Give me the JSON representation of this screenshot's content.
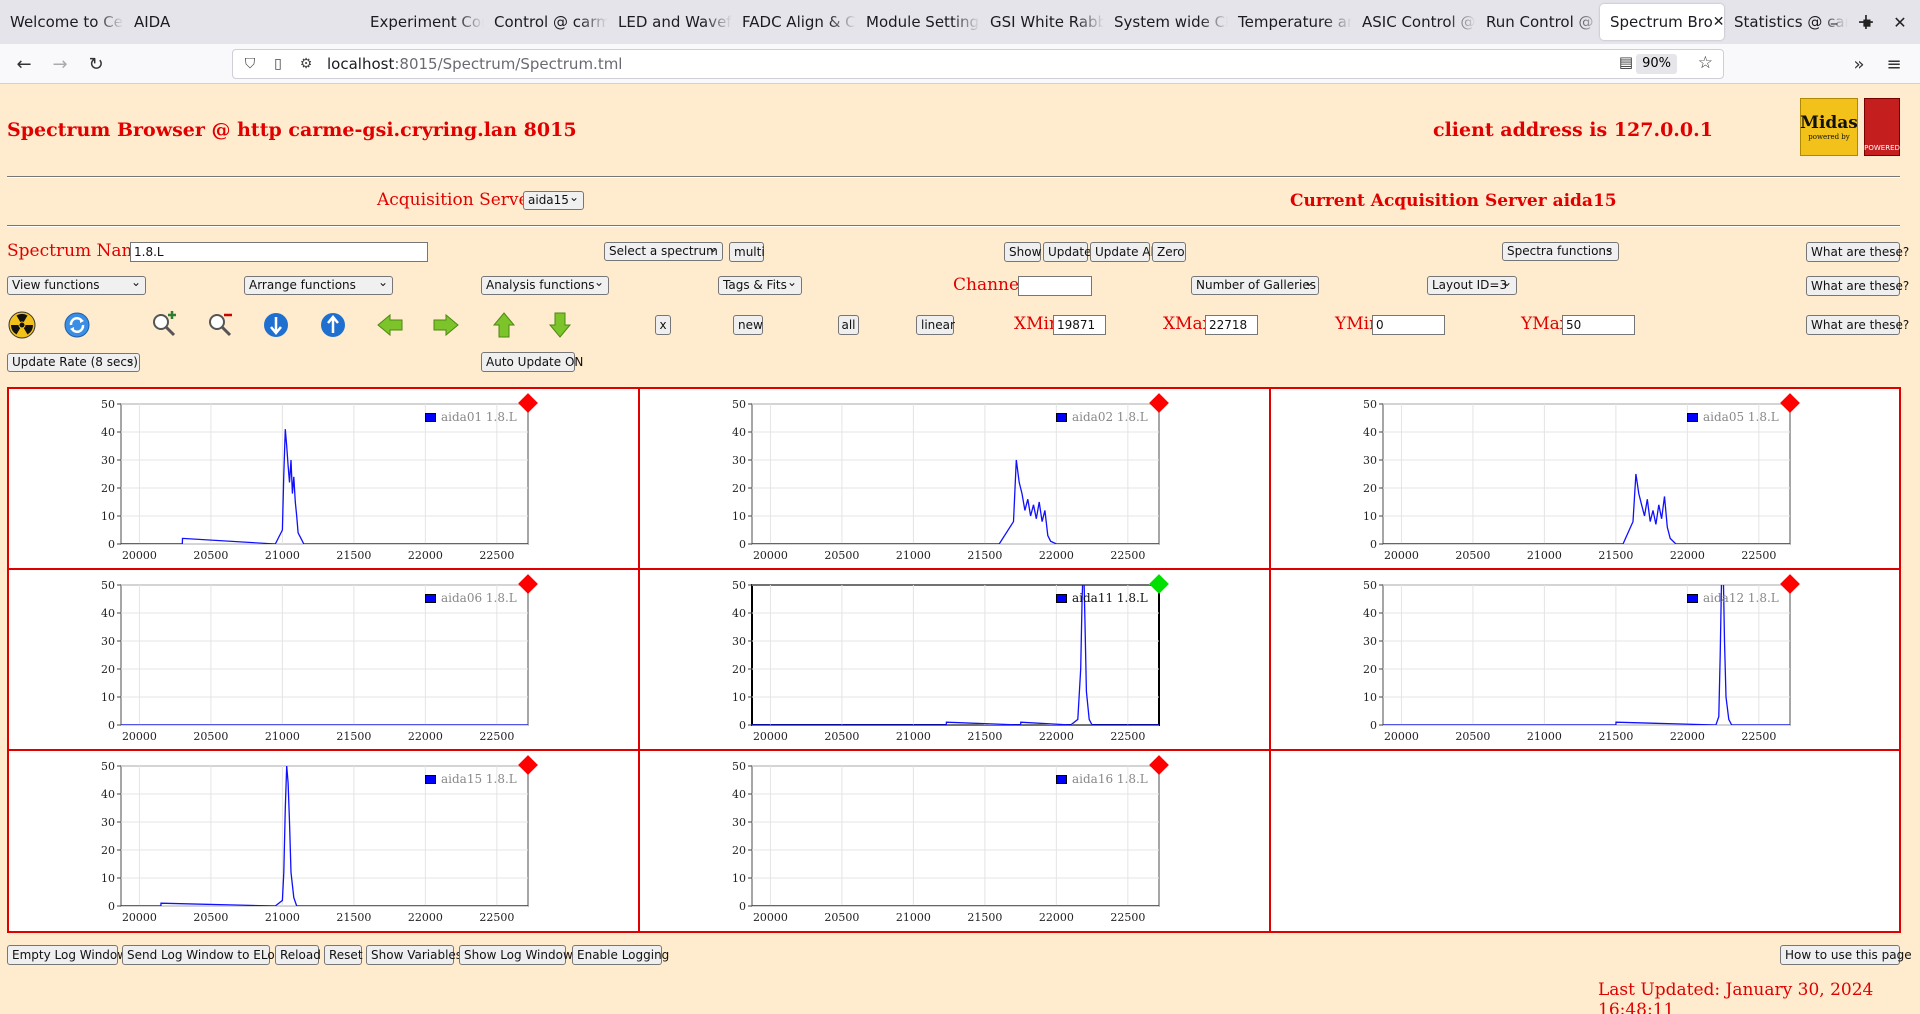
{
  "browser": {
    "tabs": [
      {
        "label": "Welcome to Ce"
      },
      {
        "label": "AIDA"
      },
      {
        "label": "Experiment Con"
      },
      {
        "label": "Control @ carm"
      },
      {
        "label": "LED and Wavef"
      },
      {
        "label": "FADC Align & C"
      },
      {
        "label": "Module Setting"
      },
      {
        "label": "GSI White Rabb"
      },
      {
        "label": "System wide Ch"
      },
      {
        "label": "Temperature an"
      },
      {
        "label": "ASIC Control @"
      },
      {
        "label": "Run Control @"
      },
      {
        "label": "Spectrum Bro"
      },
      {
        "label": "Statistics @ car"
      }
    ],
    "active_tab": 12,
    "url_host": "localhost",
    "url_path": ":8015/Spectrum/Spectrum.tml",
    "zoom": "90%"
  },
  "header": {
    "title": "Spectrum Browser @ http carme-gsi.cryring.lan 8015",
    "client_address": "client address is 127.0.0.1",
    "logo_midas": "Midas",
    "logo_midas_sub": "powered by",
    "logo_tcl": "POWERED"
  },
  "servers": {
    "label": "Acquisition Servers",
    "selected": "aida15",
    "current": "Current Acquisition Server aida15"
  },
  "controls": {
    "spectrum_name_label": "Spectrum Name:",
    "spectrum_name_value": "1.8.L",
    "select_spectrum": "Select a spectrum",
    "multi": "multi",
    "show": "Show",
    "update": "Update",
    "update_all": "Update All",
    "zero": "Zero",
    "spectra_functions": "Spectra functions",
    "what_are_these": "What are these?",
    "view_functions": "View functions",
    "arrange_functions": "Arrange functions",
    "analysis_functions": "Analysis functions",
    "tags_fits": "Tags & Fits",
    "channel_label": "Channel:",
    "channel_value": "",
    "number_of_galleries": "Number of Galleries",
    "layout_id": "Layout ID=3",
    "btn_x": "x",
    "btn_new": "new",
    "btn_all": "all",
    "btn_linear": "linear",
    "xmin_label": "XMin",
    "xmin_value": "19871",
    "xmax_label": "XMax",
    "xmax_value": "22718",
    "ymin_label": "YMin",
    "ymin_value": "0",
    "ymax_label": "YMax",
    "ymax_value": "50",
    "update_rate": "Update Rate (8 secs)",
    "auto_update": "Auto Update ON"
  },
  "icons": {
    "colors": {
      "radiation": "#f2c21b",
      "zoom": "#2e7d32",
      "arrow_green": "#7cc42a",
      "blue_ball": "#1e6fd0"
    }
  },
  "footer": {
    "empty_log": "Empty Log Window",
    "send_log": "Send Log Window to ELog",
    "reload": "Reload",
    "reset": "Reset",
    "show_variables": "Show Variables",
    "show_log": "Show Log Window",
    "enable_logging": "Enable Logging",
    "how_to_use": "How to use this page",
    "last_updated": "Last Updated: January 30, 2024 16:48:11"
  },
  "chart_data": [
    {
      "type": "line",
      "legend": "aida01 1.8.L",
      "status_color": "#ff0000",
      "active": false,
      "x": [
        19871,
        20300,
        20301,
        20950,
        21000,
        21010,
        21020,
        21030,
        21040,
        21050,
        21060,
        21070,
        21080,
        21090,
        21100,
        21110,
        21130,
        21150,
        22718
      ],
      "y": [
        0,
        0,
        2,
        0,
        5,
        25,
        41,
        35,
        28,
        22,
        30,
        18,
        24,
        15,
        10,
        4,
        2,
        0,
        0
      ],
      "xlim": [
        19871,
        22718
      ],
      "ylim": [
        0,
        50
      ],
      "xticks": [
        20000,
        20500,
        21000,
        21500,
        22000,
        22500
      ],
      "yticks": [
        0,
        10,
        20,
        30,
        40,
        50
      ]
    },
    {
      "type": "line",
      "legend": "aida02 1.8.L",
      "status_color": "#ff0000",
      "active": false,
      "x": [
        19871,
        21600,
        21700,
        21720,
        21740,
        21760,
        21780,
        21800,
        21820,
        21840,
        21860,
        21880,
        21900,
        21920,
        21940,
        21960,
        22000,
        22718
      ],
      "y": [
        0,
        0,
        8,
        30,
        22,
        18,
        12,
        16,
        10,
        14,
        9,
        15,
        8,
        12,
        3,
        1,
        0,
        0
      ],
      "xlim": [
        19871,
        22718
      ],
      "ylim": [
        0,
        50
      ],
      "xticks": [
        20000,
        20500,
        21000,
        21500,
        22000,
        22500
      ],
      "yticks": [
        0,
        10,
        20,
        30,
        40,
        50
      ]
    },
    {
      "type": "line",
      "legend": "aida05 1.8.L",
      "status_color": "#ff0000",
      "active": false,
      "x": [
        19871,
        21550,
        21620,
        21640,
        21660,
        21680,
        21700,
        21720,
        21740,
        21760,
        21780,
        21800,
        21820,
        21840,
        21860,
        21880,
        21920,
        22718
      ],
      "y": [
        0,
        0,
        8,
        25,
        18,
        14,
        10,
        16,
        8,
        12,
        7,
        14,
        9,
        17,
        6,
        2,
        0,
        0
      ],
      "xlim": [
        19871,
        22718
      ],
      "ylim": [
        0,
        50
      ],
      "xticks": [
        20000,
        20500,
        21000,
        21500,
        22000,
        22500
      ],
      "yticks": [
        0,
        10,
        20,
        30,
        40,
        50
      ]
    },
    {
      "type": "line",
      "legend": "aida06 1.8.L",
      "status_color": "#ff0000",
      "active": false,
      "x": [
        19871,
        22718
      ],
      "y": [
        0,
        0
      ],
      "xlim": [
        19871,
        22718
      ],
      "ylim": [
        0,
        50
      ],
      "xticks": [
        20000,
        20500,
        21000,
        21500,
        22000,
        22500
      ],
      "yticks": [
        0,
        10,
        20,
        30,
        40,
        50
      ]
    },
    {
      "type": "line",
      "legend": "aida11 1.8.L",
      "status_color": "#00e000",
      "active": true,
      "x": [
        19871,
        21230,
        21231,
        21750,
        21751,
        22100,
        22150,
        22170,
        22180,
        22190,
        22200,
        22210,
        22230,
        22250,
        22718
      ],
      "y": [
        0,
        0,
        1,
        0,
        1,
        0,
        2,
        20,
        45,
        60,
        38,
        12,
        2,
        0,
        0
      ],
      "xlim": [
        19871,
        22718
      ],
      "ylim": [
        0,
        50
      ],
      "xticks": [
        20000,
        20500,
        21000,
        21500,
        22000,
        22500
      ],
      "yticks": [
        0,
        10,
        20,
        30,
        40,
        50
      ]
    },
    {
      "type": "line",
      "legend": "aida12 1.8.L",
      "status_color": "#ff0000",
      "active": false,
      "x": [
        19871,
        21500,
        21501,
        22200,
        22220,
        22230,
        22240,
        22250,
        22260,
        22270,
        22290,
        22310,
        22718
      ],
      "y": [
        0,
        0,
        1,
        0,
        3,
        25,
        55,
        58,
        30,
        10,
        2,
        0,
        0
      ],
      "xlim": [
        19871,
        22718
      ],
      "ylim": [
        0,
        50
      ],
      "xticks": [
        20000,
        20500,
        21000,
        21500,
        22000,
        22500
      ],
      "yticks": [
        0,
        10,
        20,
        30,
        40,
        50
      ]
    },
    {
      "type": "line",
      "legend": "aida15 1.8.L",
      "status_color": "#ff0000",
      "active": false,
      "x": [
        19871,
        20150,
        20151,
        20950,
        21000,
        21010,
        21020,
        21030,
        21040,
        21050,
        21060,
        21080,
        21100,
        22718
      ],
      "y": [
        0,
        0,
        1,
        0,
        2,
        12,
        35,
        50,
        44,
        30,
        12,
        3,
        0,
        0
      ],
      "xlim": [
        19871,
        22718
      ],
      "ylim": [
        0,
        50
      ],
      "xticks": [
        20000,
        20500,
        21000,
        21500,
        22000,
        22500
      ],
      "yticks": [
        0,
        10,
        20,
        30,
        40,
        50
      ]
    },
    {
      "type": "line",
      "legend": "aida16 1.8.L",
      "status_color": "#ff0000",
      "active": false,
      "x": [
        19871,
        22718
      ],
      "y": [
        0,
        0
      ],
      "xlim": [
        19871,
        22718
      ],
      "ylim": [
        0,
        50
      ],
      "xticks": [
        20000,
        20500,
        21000,
        21500,
        22000,
        22500
      ],
      "yticks": [
        0,
        10,
        20,
        30,
        40,
        50
      ]
    }
  ]
}
